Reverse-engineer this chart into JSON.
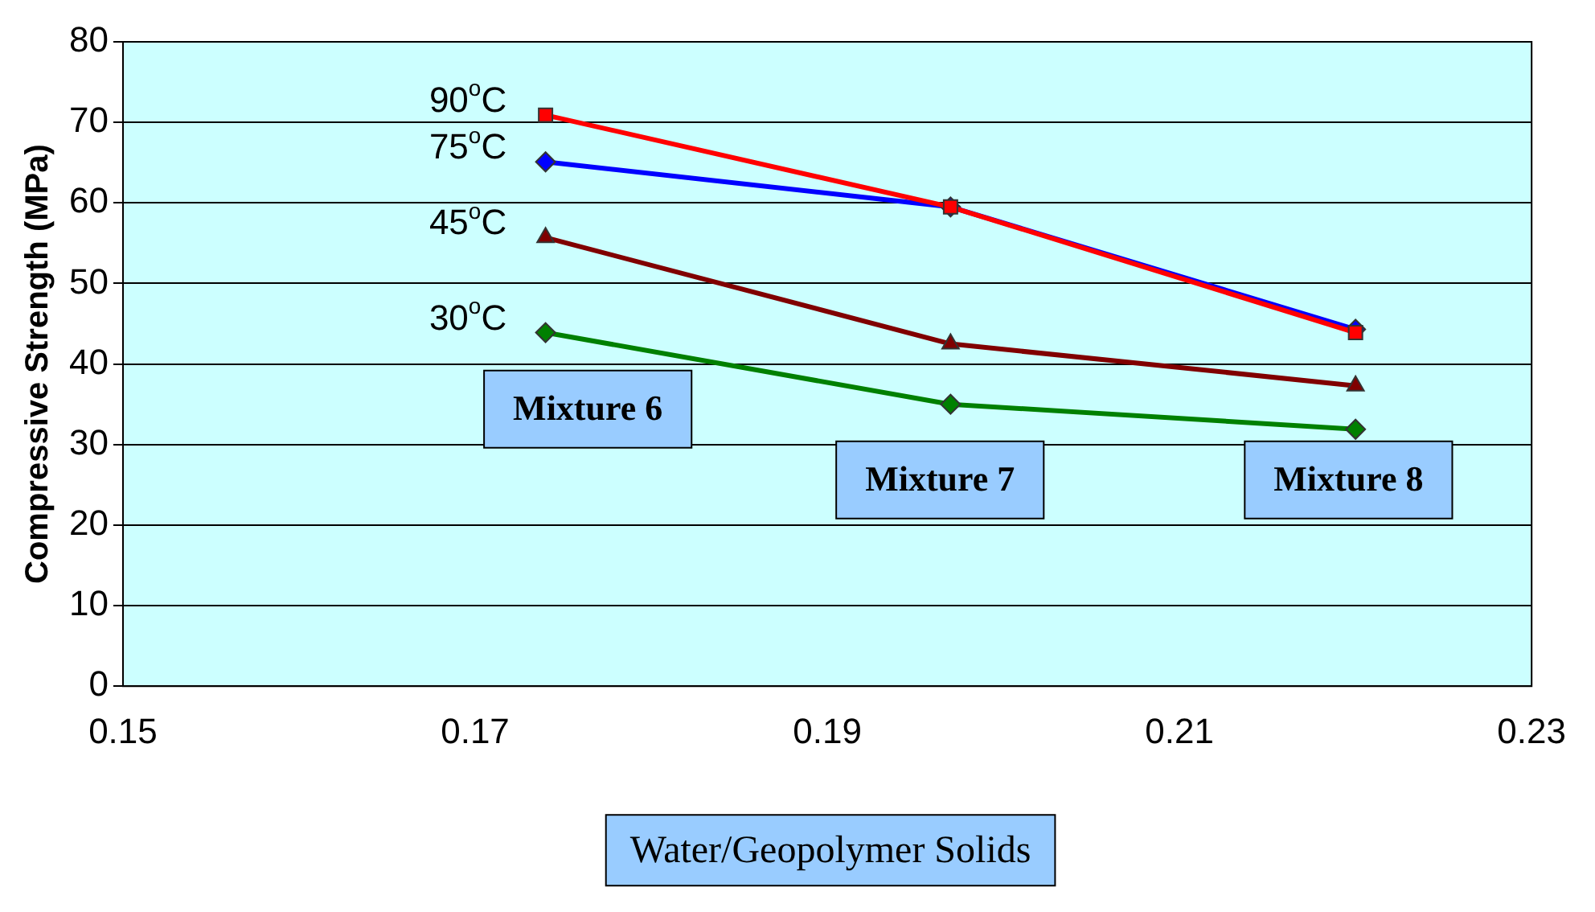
{
  "chart_data": {
    "type": "line",
    "xlabel": "Water/Geopolymer Solids",
    "ylabel": "Compressive Strength (MPa)",
    "xlim": [
      0.15,
      0.23
    ],
    "xticks": [
      0.15,
      0.17,
      0.19,
      0.21,
      0.23
    ],
    "ylim": [
      0,
      80
    ],
    "yticks": [
      0,
      10,
      20,
      30,
      40,
      50,
      60,
      70,
      80
    ],
    "grid": "y",
    "legend": false,
    "series": [
      {
        "name": "90$^{o}$C",
        "color": "#ff0000",
        "marker": "square",
        "x": [
          0.174,
          0.197,
          0.22
        ],
        "values": [
          70.9,
          59.5,
          43.9
        ]
      },
      {
        "name": "75$^{o}$C",
        "color": "#0000ff",
        "marker": "diamond",
        "x": [
          0.174,
          0.197,
          0.22
        ],
        "values": [
          65.1,
          59.5,
          44.3
        ]
      },
      {
        "name": "45$^{o}$C",
        "color": "#800000",
        "marker": "triangle",
        "x": [
          0.174,
          0.197,
          0.22
        ],
        "values": [
          55.7,
          42.5,
          37.3
        ]
      },
      {
        "name": "30$^{o}$C",
        "color": "#008000",
        "marker": "diamond",
        "x": [
          0.174,
          0.197,
          0.22
        ],
        "values": [
          43.9,
          35.0,
          31.9
        ]
      }
    ],
    "annotations": [
      "Mixture 6",
      "Mixture 7",
      "Mixture 8"
    ]
  }
}
